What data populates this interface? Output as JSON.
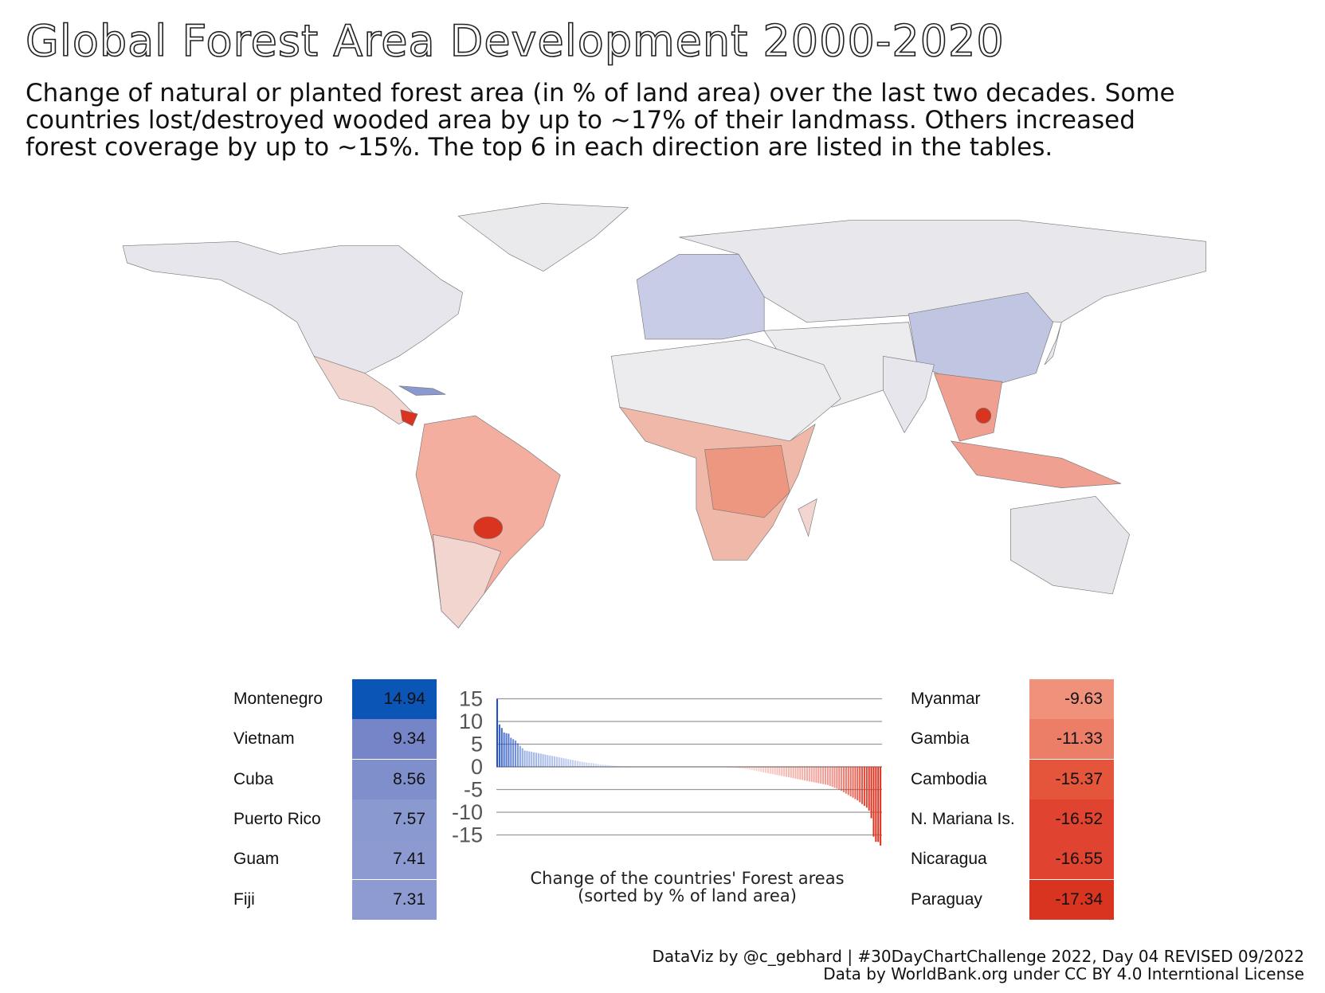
{
  "title": "Global Forest Area Development 2000-2020",
  "subtitle": [
    "Change of natural or planted forest area (in % of land area) over the last two decades. Some",
    "countries lost/destroyed wooded area by up to ~17% of their landmass. Others increased",
    "forest coverage by up to ~15%. The top 6 in each direction are listed in the tables."
  ],
  "top_gain": [
    {
      "country": "Montenegro",
      "value": "14.94",
      "color": "#0a55b5"
    },
    {
      "country": "Vietnam",
      "value": "9.34",
      "color": "#7585c8"
    },
    {
      "country": "Cuba",
      "value": "8.56",
      "color": "#7f8fcc"
    },
    {
      "country": "Puerto Rico",
      "value": "7.57",
      "color": "#8a99d0"
    },
    {
      "country": "Guam",
      "value": "7.41",
      "color": "#8c9ad1"
    },
    {
      "country": "Fiji",
      "value": "7.31",
      "color": "#8e9bd2"
    }
  ],
  "top_loss": [
    {
      "country": "Myanmar",
      "value": "-9.63",
      "color": "#f0917b"
    },
    {
      "country": "Gambia",
      "value": "-11.33",
      "color": "#ec7d66"
    },
    {
      "country": "Cambodia",
      "value": "-15.37",
      "color": "#e4553c"
    },
    {
      "country": "N. Mariana Is.",
      "value": "-16.52",
      "color": "#e0432f"
    },
    {
      "country": "Nicaragua",
      "value": "-16.55",
      "color": "#e0432f"
    },
    {
      "country": "Paraguay",
      "value": "-17.34",
      "color": "#d93420"
    }
  ],
  "chart_data": {
    "type": "bar",
    "title": "Change of the countries' Forest areas",
    "subtitle": "(sorted by % of land area)",
    "xlabel": "",
    "ylabel": "",
    "ylim": [
      -17.34,
      15
    ],
    "yticks": [
      "15",
      "10",
      "5",
      "0",
      "-5",
      "-10",
      "-15"
    ],
    "ytick_values": [
      15,
      10,
      5,
      0,
      -5,
      -10,
      -15
    ],
    "grid": true,
    "colors": {
      "positive": "#1f4fc4",
      "negative": "#e0301e"
    },
    "values": [
      14.94,
      9.34,
      8.56,
      7.57,
      7.41,
      7.31,
      6.4,
      6.1,
      5.8,
      5.2,
      4.6,
      4.1,
      3.6,
      3.5,
      3.4,
      3.3,
      3.2,
      3.1,
      3.0,
      2.9,
      2.8,
      2.7,
      2.6,
      2.5,
      2.4,
      2.3,
      2.2,
      2.1,
      2.0,
      1.9,
      1.8,
      1.7,
      1.6,
      1.5,
      1.4,
      1.3,
      1.2,
      1.1,
      1.0,
      0.95,
      0.9,
      0.85,
      0.8,
      0.7,
      0.6,
      0.55,
      0.5,
      0.45,
      0.4,
      0.35,
      0.3,
      0.26,
      0.22,
      0.18,
      0.15,
      0.12,
      0.1,
      0.08,
      0.05,
      0.03,
      0,
      0,
      0,
      0,
      0,
      0,
      0,
      0,
      0,
      0,
      0,
      0,
      0,
      0,
      0,
      0,
      0,
      0,
      0,
      0,
      0,
      0,
      0,
      0,
      0,
      0,
      0,
      0,
      0,
      0,
      0,
      0,
      0,
      0,
      0,
      0,
      0,
      0,
      0,
      0,
      -0.05,
      -0.1,
      -0.15,
      -0.2,
      -0.25,
      -0.3,
      -0.35,
      -0.4,
      -0.45,
      -0.5,
      -0.6,
      -0.7,
      -0.8,
      -0.9,
      -1.0,
      -1.1,
      -1.2,
      -1.3,
      -1.4,
      -1.5,
      -1.6,
      -1.7,
      -1.8,
      -1.9,
      -2.0,
      -2.1,
      -2.2,
      -2.3,
      -2.4,
      -2.5,
      -2.6,
      -2.7,
      -2.8,
      -2.9,
      -3.0,
      -3.1,
      -3.2,
      -3.3,
      -3.4,
      -3.5,
      -3.6,
      -3.7,
      -3.8,
      -3.9,
      -4.0,
      -4.2,
      -4.4,
      -4.6,
      -4.8,
      -5.0,
      -5.3,
      -5.6,
      -5.9,
      -6.2,
      -6.5,
      -6.8,
      -7.1,
      -7.4,
      -7.8,
      -8.2,
      -8.6,
      -9.0,
      -9.63,
      -11.33,
      -15.37,
      -16.52,
      -16.55,
      -17.34
    ]
  },
  "footer": [
    "DataViz by @c_gebhard |  #30DayChartChallenge 2022, Day 04 REVISED  09/2022",
    "Data by WorldBank.org under CC BY 4.0 Interntional License"
  ]
}
